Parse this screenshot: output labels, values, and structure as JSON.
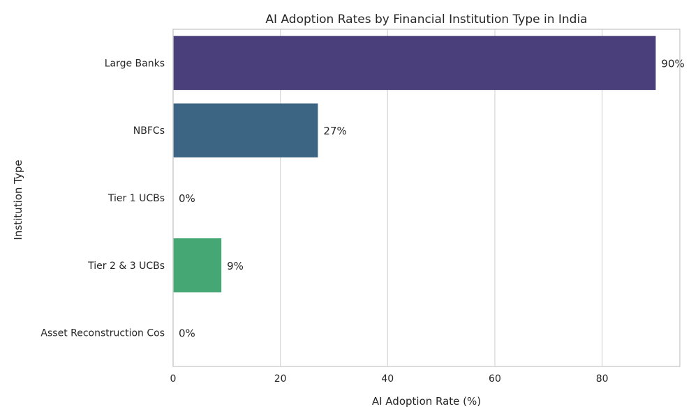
{
  "chart_data": {
    "type": "bar",
    "orientation": "horizontal",
    "title": "AI Adoption Rates by Financial Institution Type in India",
    "xlabel": "AI Adoption Rate (%)",
    "ylabel": "Institution Type",
    "categories": [
      "Large Banks",
      "NBFCs",
      "Tier 1 UCBs",
      "Tier 2 & 3 UCBs",
      "Asset Reconstruction Cos"
    ],
    "values": [
      90,
      27,
      0,
      9,
      0
    ],
    "value_labels": [
      "90%",
      "27%",
      "0%",
      "9%",
      "0%"
    ],
    "colors": [
      "#4a3f7a",
      "#3b6582",
      "#2f8e8a",
      "#45a874",
      "#8bc45a"
    ],
    "xlim": [
      0,
      94.5
    ],
    "xticks": [
      0,
      20,
      40,
      60,
      80
    ],
    "grid": true,
    "legend": "none"
  }
}
